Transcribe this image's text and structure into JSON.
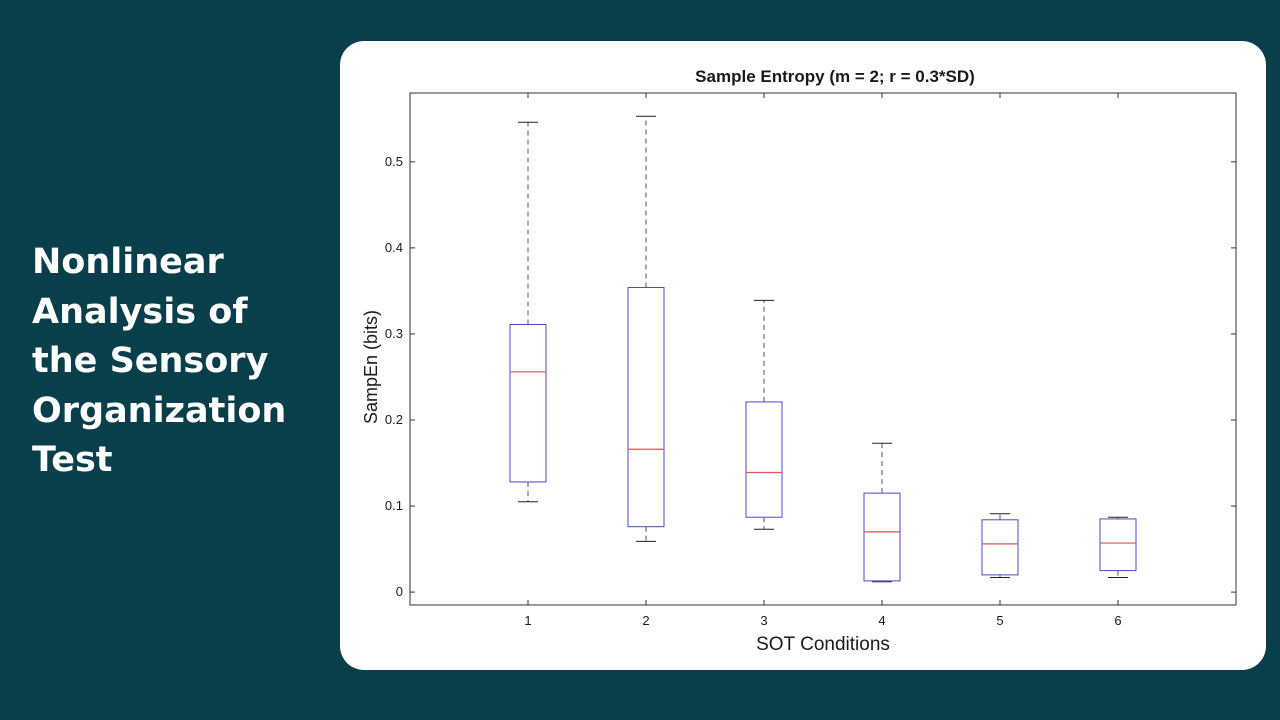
{
  "slide": {
    "title": "Nonlinear\nAnalysis of\nthe Sensory\nOrganization\nTest"
  },
  "colors": {
    "background": "#083f4b",
    "card": "#ffffff",
    "box": "#4a4ac8",
    "median": "#e05050",
    "whisker": "#555555"
  },
  "chart_data": {
    "type": "box",
    "title": "Sample Entropy (m = 2; r = 0.3*SD)",
    "xlabel": "SOT Conditions",
    "ylabel": "SampEn (bits)",
    "ylim": [
      -0.015,
      0.58
    ],
    "yticks": [
      0,
      0.1,
      0.2,
      0.3,
      0.4,
      0.5
    ],
    "ytick_labels": [
      "0",
      "0.1",
      "0.2",
      "0.3",
      "0.4",
      "0.5"
    ],
    "categories": [
      "1",
      "2",
      "3",
      "4",
      "5",
      "6"
    ],
    "boxes": [
      {
        "label": "1",
        "min": 0.105,
        "q1": 0.128,
        "median": 0.256,
        "q3": 0.311,
        "max": 0.546
      },
      {
        "label": "2",
        "min": 0.059,
        "q1": 0.076,
        "median": 0.166,
        "q3": 0.354,
        "max": 0.553
      },
      {
        "label": "3",
        "min": 0.073,
        "q1": 0.087,
        "median": 0.139,
        "q3": 0.221,
        "max": 0.339
      },
      {
        "label": "4",
        "min": 0.012,
        "q1": 0.013,
        "median": 0.07,
        "q3": 0.115,
        "max": 0.173
      },
      {
        "label": "5",
        "min": 0.017,
        "q1": 0.02,
        "median": 0.056,
        "q3": 0.084,
        "max": 0.091
      },
      {
        "label": "6",
        "min": 0.017,
        "q1": 0.025,
        "median": 0.057,
        "q3": 0.085,
        "max": 0.087
      }
    ],
    "grid": false
  }
}
